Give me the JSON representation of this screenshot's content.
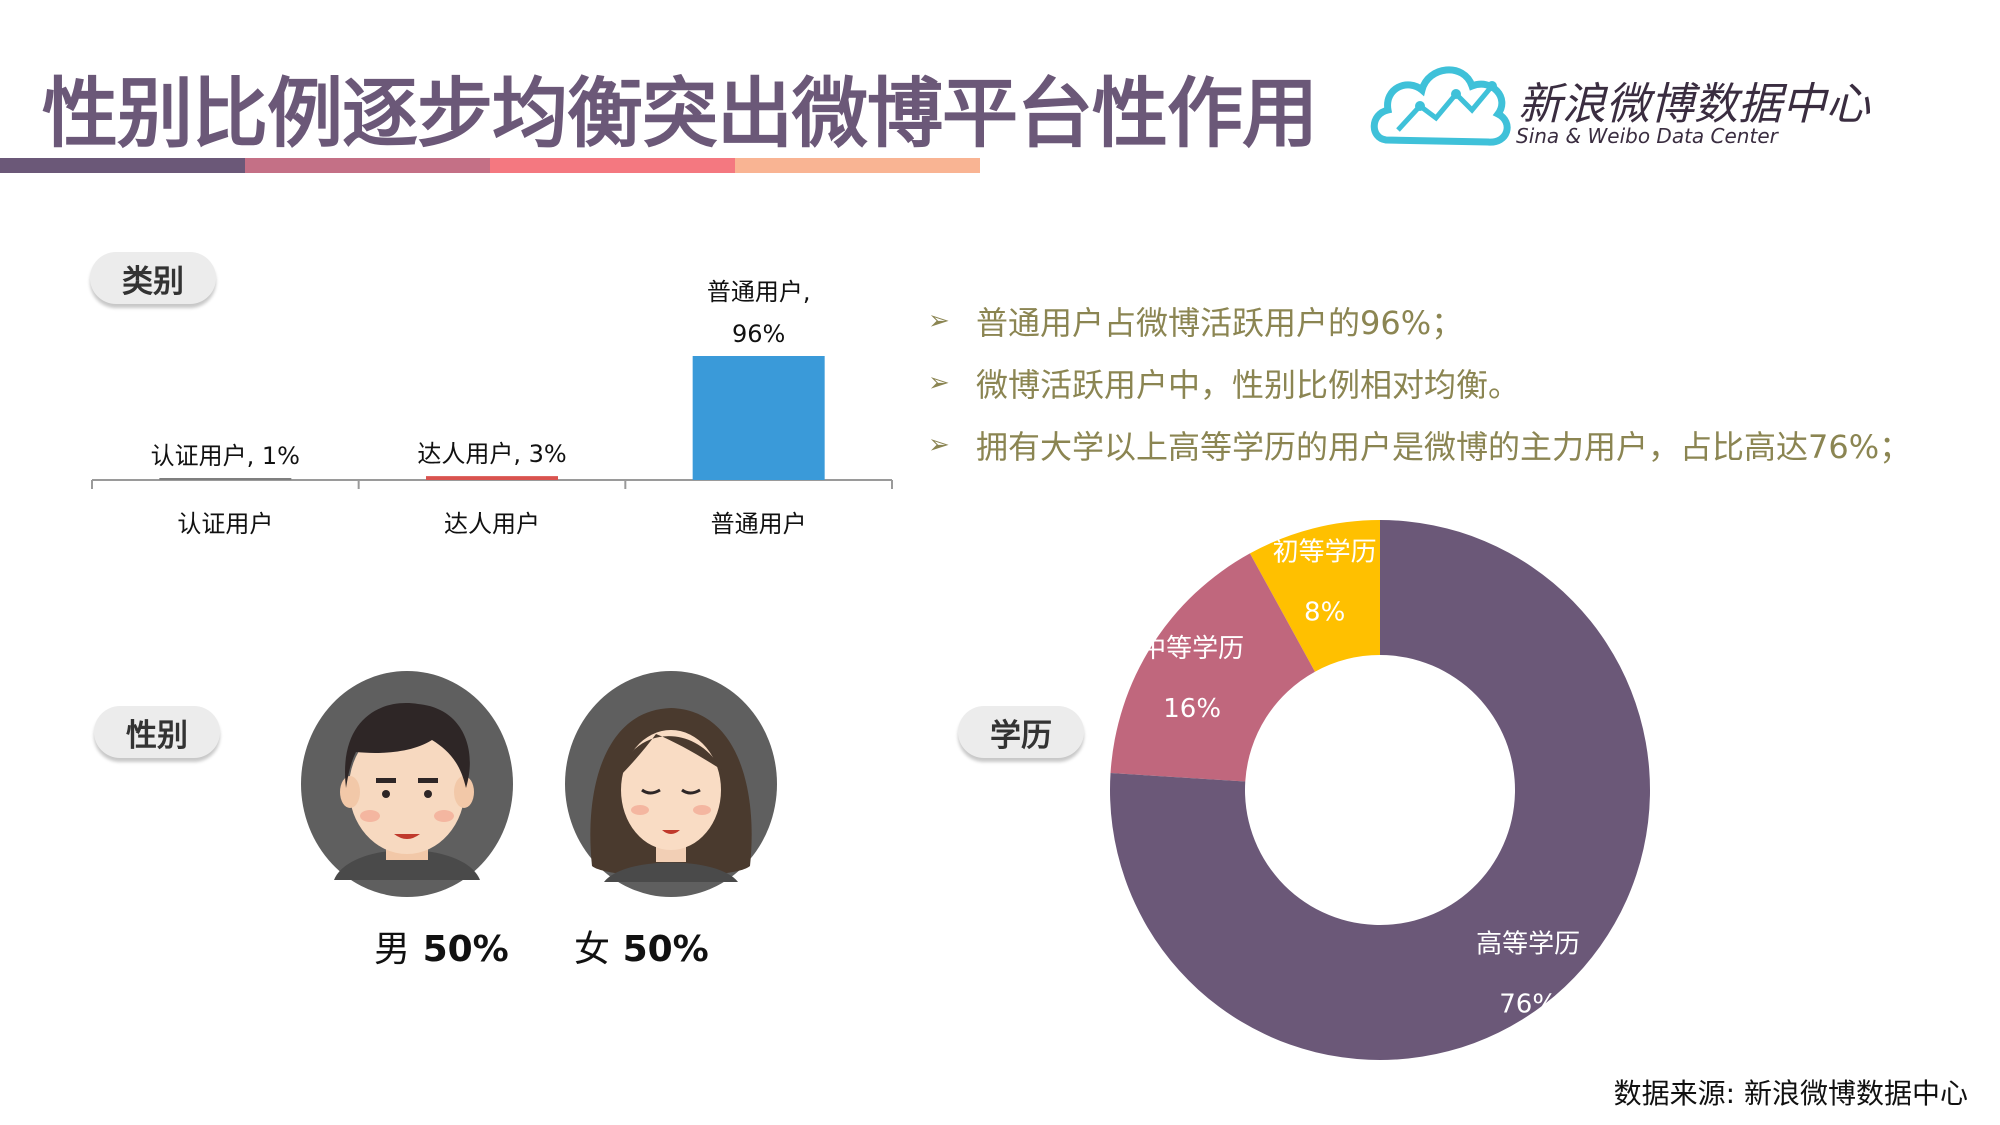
{
  "title": "性别比例逐步均衡突出微博平台性作用",
  "accent_colors": [
    "#6b5878",
    "#c47086",
    "#f47880",
    "#f9b493"
  ],
  "logo": {
    "cn": "新浪微博数据中心",
    "en": "Sina & Weibo Data Center",
    "icon": "cloud-chart-logo-icon"
  },
  "pills": {
    "category": "类别",
    "gender": "性别",
    "education": "学历"
  },
  "bullets": [
    "普通用户占微博活跃用户的96%；",
    "微博活跃用户中，性别比例相对均衡。",
    "拥有大学以上高等学历的用户是微博的主力用户，占比高达76%；"
  ],
  "gender": {
    "male": {
      "char": "男",
      "value": "50%",
      "icon": "male-avatar-icon"
    },
    "female": {
      "char": "女",
      "value": "50%",
      "icon": "female-avatar-icon"
    }
  },
  "source": "数据来源: 新浪微博数据中心",
  "chart_data": [
    {
      "type": "bar",
      "categories": [
        "认证用户",
        "达人用户",
        "普通用户"
      ],
      "values": [
        1,
        3,
        96
      ],
      "data_labels": [
        [
          "认证用户, 1%"
        ],
        [
          "达人用户, 3%"
        ],
        [
          "普通用户,",
          "96%"
        ]
      ],
      "colors": [
        "#7f7f7f",
        "#d9534f",
        "#3a9ad9"
      ],
      "ylim": [
        0,
        100
      ],
      "grid": false
    },
    {
      "type": "pie",
      "categories": [
        "初等学历",
        "中等学历",
        "高等学历"
      ],
      "values": [
        8,
        16,
        76
      ],
      "value_labels": [
        "8%",
        "16%",
        "76%"
      ],
      "colors": [
        "#ffc000",
        "#c0677d",
        "#6b5878"
      ],
      "donut": true
    }
  ]
}
